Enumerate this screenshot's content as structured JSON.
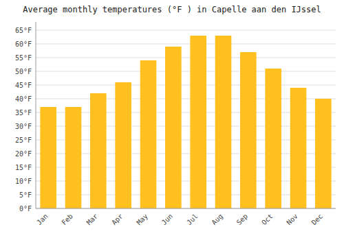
{
  "chart_data": {
    "type": "bar",
    "title": "Average monthly temperatures (°F ) in Capelle aan den IJssel",
    "categories": [
      "Jan",
      "Feb",
      "Mar",
      "Apr",
      "May",
      "Jun",
      "Jul",
      "Aug",
      "Sep",
      "Oct",
      "Nov",
      "Dec"
    ],
    "values": [
      37,
      37,
      42,
      46,
      54,
      59,
      63,
      63,
      57,
      51,
      44,
      40
    ],
    "color": "#FFC020",
    "ylim": [
      0,
      68
    ],
    "yticks": [
      {
        "value": 0,
        "label": "0°F"
      },
      {
        "value": 5,
        "label": "5°F"
      },
      {
        "value": 10,
        "label": "10°F"
      },
      {
        "value": 15,
        "label": "15°F"
      },
      {
        "value": 20,
        "label": "20°F"
      },
      {
        "value": 25,
        "label": "25°F"
      },
      {
        "value": 30,
        "label": "30°F"
      },
      {
        "value": 35,
        "label": "35°F"
      },
      {
        "value": 40,
        "label": "40°F"
      },
      {
        "value": 45,
        "label": "45°F"
      },
      {
        "value": 50,
        "label": "50°F"
      },
      {
        "value": 55,
        "label": "55°F"
      },
      {
        "value": 60,
        "label": "60°F"
      },
      {
        "value": 65,
        "label": "65°F"
      }
    ],
    "grid": true
  }
}
